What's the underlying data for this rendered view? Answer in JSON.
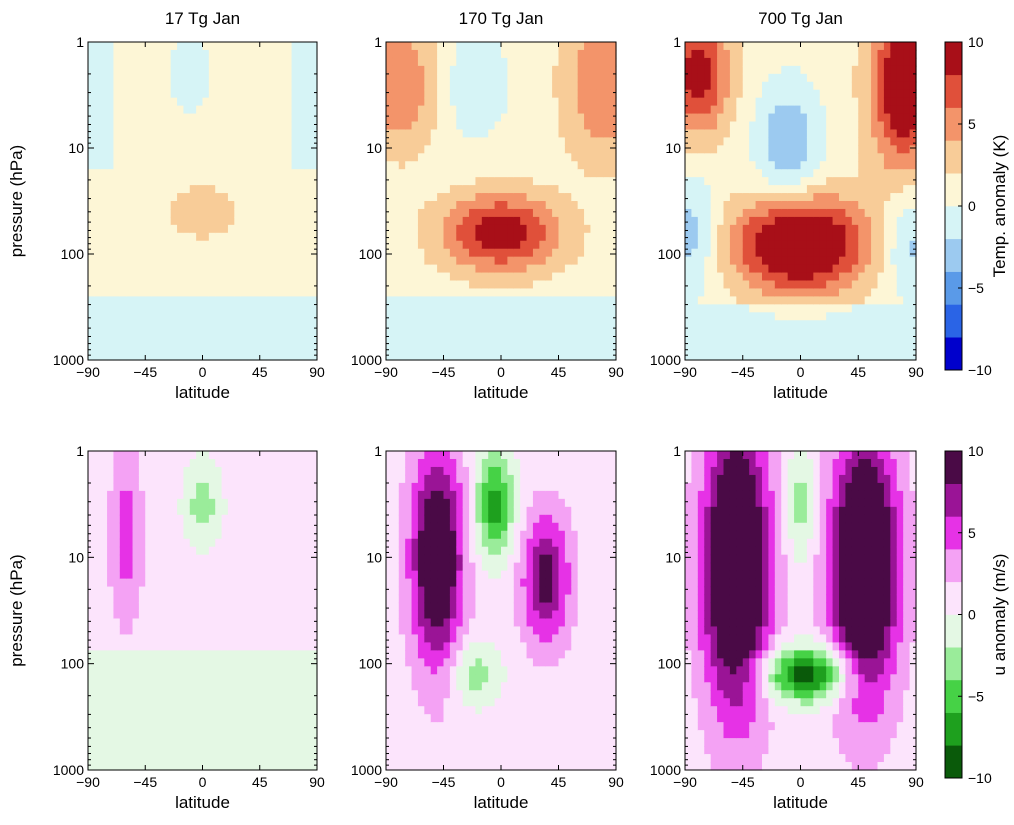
{
  "chart_data": [
    {
      "type": "heatmap",
      "title": "17 Tg Jan",
      "xlabel": "latitude",
      "ylabel": "pressure (hPa)",
      "x_ticks": [
        "−90",
        "−45",
        "0",
        "45",
        "90"
      ],
      "y_ticks": [
        "1",
        "10",
        "100",
        "1000"
      ],
      "xlim": [
        -90,
        90
      ],
      "ylim": [
        1000,
        1
      ],
      "y_scale": "log",
      "field": "temperature anomaly"
    },
    {
      "type": "heatmap",
      "title": "170 Tg Jan",
      "xlabel": "latitude",
      "ylabel": "",
      "x_ticks": [
        "−90",
        "−45",
        "0",
        "45",
        "90"
      ],
      "y_ticks": [
        "1",
        "10",
        "100",
        "1000"
      ],
      "xlim": [
        -90,
        90
      ],
      "ylim": [
        1000,
        1
      ],
      "y_scale": "log",
      "field": "temperature anomaly"
    },
    {
      "type": "heatmap",
      "title": "700 Tg Jan",
      "xlabel": "latitude",
      "ylabel": "",
      "x_ticks": [
        "−90",
        "−45",
        "0",
        "45",
        "90"
      ],
      "y_ticks": [
        "1",
        "10",
        "100",
        "1000"
      ],
      "xlim": [
        -90,
        90
      ],
      "ylim": [
        1000,
        1
      ],
      "y_scale": "log",
      "field": "temperature anomaly"
    },
    {
      "type": "heatmap",
      "title": "",
      "xlabel": "latitude",
      "ylabel": "pressure (hPa)",
      "x_ticks": [
        "−90",
        "−45",
        "0",
        "45",
        "90"
      ],
      "y_ticks": [
        "1",
        "10",
        "100",
        "1000"
      ],
      "xlim": [
        -90,
        90
      ],
      "ylim": [
        1000,
        1
      ],
      "y_scale": "log",
      "field": "u anomaly"
    },
    {
      "type": "heatmap",
      "title": "",
      "xlabel": "latitude",
      "ylabel": "",
      "x_ticks": [
        "−90",
        "−45",
        "0",
        "45",
        "90"
      ],
      "y_ticks": [
        "1",
        "10",
        "100",
        "1000"
      ],
      "xlim": [
        -90,
        90
      ],
      "ylim": [
        1000,
        1
      ],
      "y_scale": "log",
      "field": "u anomaly"
    },
    {
      "type": "heatmap",
      "title": "",
      "xlabel": "latitude",
      "ylabel": "",
      "x_ticks": [
        "−90",
        "−45",
        "0",
        "45",
        "90"
      ],
      "y_ticks": [
        "1",
        "10",
        "100",
        "1000"
      ],
      "xlim": [
        -90,
        90
      ],
      "ylim": [
        1000,
        1
      ],
      "y_scale": "log",
      "field": "u anomaly"
    }
  ],
  "colorbars": [
    {
      "label": "Temp. anomaly (K)",
      "ticks": [
        "10",
        "5",
        "0",
        "−5",
        "−10"
      ],
      "range": [
        -10,
        10
      ],
      "colors": [
        "#0000cc",
        "#2a64e6",
        "#5a9ae8",
        "#9ccaf0",
        "#d6f4f6",
        "#fdf6d6",
        "#f8cc98",
        "#f3946a",
        "#e0503a",
        "#a80f18"
      ]
    },
    {
      "label": "u anomaly (m/s)",
      "ticks": [
        "10",
        "5",
        "0",
        "−5",
        "−10"
      ],
      "range": [
        -10,
        10
      ],
      "colors": [
        "#0a5a0a",
        "#1ea01e",
        "#46d246",
        "#9aec9a",
        "#e4f8e4",
        "#fce4fc",
        "#f4a2f4",
        "#e632e6",
        "#9a1496",
        "#4a0a46"
      ]
    }
  ]
}
